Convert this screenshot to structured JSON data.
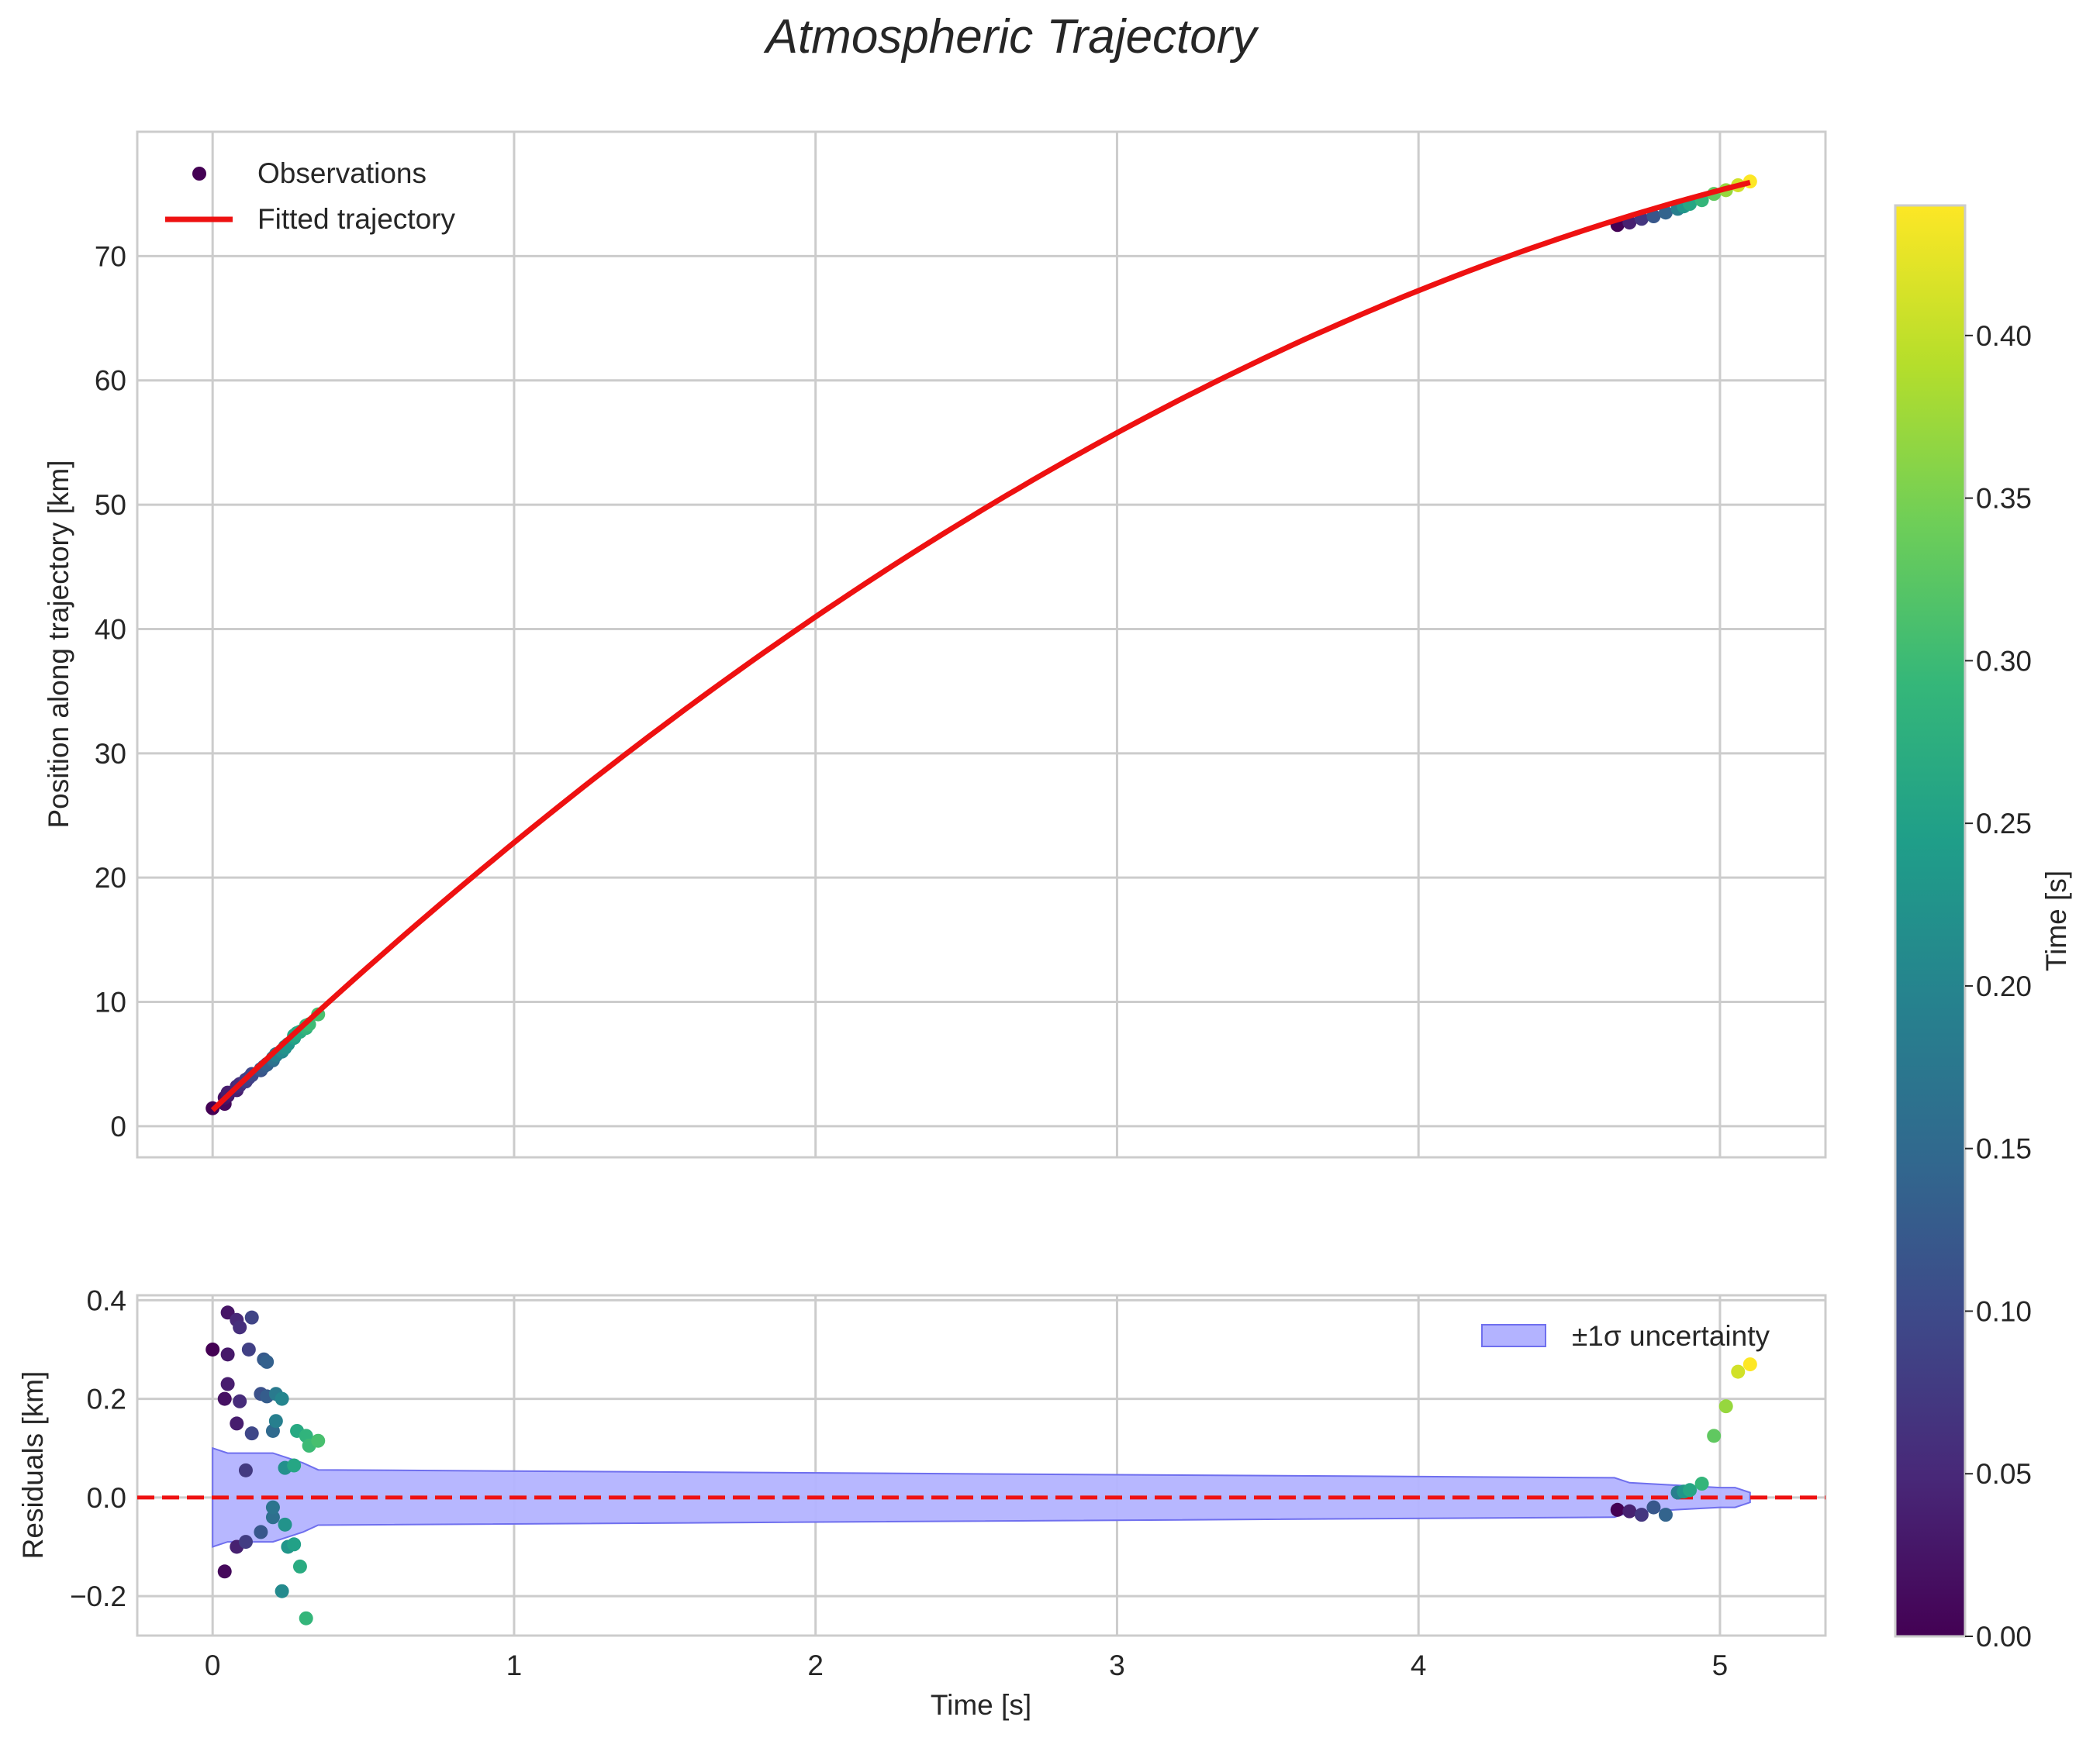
{
  "chart_data": {
    "title": "Atmospheric Trajectory",
    "colors": {
      "fit": "#ee1111",
      "band_fill": "#b3b3ff",
      "band_edge": "#6f6fee",
      "grid": "#cccccc",
      "spine": "#cccccc",
      "zero_line": "#ee1111"
    },
    "colormap": {
      "name": "viridis",
      "stops": [
        "#440154",
        "#482878",
        "#3e4989",
        "#31688e",
        "#26828e",
        "#1f9e89",
        "#35b779",
        "#6ece58",
        "#b5de2b",
        "#fde725"
      ]
    },
    "colorbar": {
      "label": "Time [s]",
      "range": [
        0,
        0.44
      ],
      "ticks": [
        "0.00",
        "0.05",
        "0.10",
        "0.15",
        "0.20",
        "0.25",
        "0.30",
        "0.35",
        "0.40"
      ]
    },
    "top": {
      "type": "scatter+line",
      "ylabel": "Position along trajectory [km]",
      "xlim": [
        -0.25,
        5.35
      ],
      "ylim": [
        -2.5,
        80
      ],
      "xticks": [
        0,
        1,
        2,
        3,
        4,
        5
      ],
      "yticks": [
        "0",
        "10",
        "20",
        "30",
        "40",
        "50",
        "60",
        "70"
      ],
      "legend": {
        "observations": "Observations",
        "fit": "Fitted trajectory",
        "position": "upper-left"
      },
      "fit_curve": {
        "a": 1.3,
        "b": 23.2,
        "c": -1.68,
        "x_start": 0,
        "x_end": 5.1
      }
    },
    "bottom": {
      "type": "scatter+band",
      "xlabel": "Time [s]",
      "ylabel": "Residuals [km]",
      "xlim": [
        -0.25,
        5.35
      ],
      "ylim": [
        -0.28,
        0.41
      ],
      "xticks": [
        "0",
        "1",
        "2",
        "3",
        "4",
        "5"
      ],
      "yticks": [
        "−0.2",
        "0.0",
        "0.2",
        "0.4"
      ],
      "legend": {
        "band": "±1σ uncertainty",
        "position": "upper-right"
      },
      "band": {
        "x": [
          0,
          0.05,
          0.2,
          0.3,
          0.35,
          4.65,
          4.7,
          5.0,
          5.05,
          5.1
        ],
        "upper": [
          0.1,
          0.09,
          0.09,
          0.07,
          0.056,
          0.04,
          0.03,
          0.02,
          0.02,
          0.01
        ],
        "lower": [
          -0.1,
          -0.09,
          -0.09,
          -0.07,
          -0.056,
          -0.04,
          -0.03,
          -0.02,
          -0.02,
          -0.01
        ]
      }
    },
    "observations": [
      {
        "t": 0.0,
        "pos": 1.45,
        "res": 0.3,
        "c": 0.0
      },
      {
        "t": 0.04,
        "pos": 1.8,
        "res": -0.15,
        "c": 0.01
      },
      {
        "t": 0.04,
        "pos": 2.3,
        "res": 0.2,
        "c": 0.02
      },
      {
        "t": 0.05,
        "pos": 2.45,
        "res": 0.375,
        "c": 0.025
      },
      {
        "t": 0.05,
        "pos": 2.6,
        "res": 0.29,
        "c": 0.03
      },
      {
        "t": 0.05,
        "pos": 2.7,
        "res": 0.23,
        "c": 0.035
      },
      {
        "t": 0.08,
        "pos": 2.9,
        "res": 0.15,
        "c": 0.035
      },
      {
        "t": 0.08,
        "pos": 3.0,
        "res": -0.1,
        "c": 0.04
      },
      {
        "t": 0.08,
        "pos": 3.2,
        "res": 0.36,
        "c": 0.05
      },
      {
        "t": 0.09,
        "pos": 3.3,
        "res": 0.195,
        "c": 0.055
      },
      {
        "t": 0.09,
        "pos": 3.4,
        "res": 0.345,
        "c": 0.06
      },
      {
        "t": 0.11,
        "pos": 3.6,
        "res": 0.055,
        "c": 0.075
      },
      {
        "t": 0.11,
        "pos": 3.75,
        "res": -0.09,
        "c": 0.08
      },
      {
        "t": 0.12,
        "pos": 3.9,
        "res": 0.3,
        "c": 0.085
      },
      {
        "t": 0.13,
        "pos": 4.1,
        "res": 0.365,
        "c": 0.09
      },
      {
        "t": 0.13,
        "pos": 4.2,
        "res": 0.13,
        "c": 0.095
      },
      {
        "t": 0.16,
        "pos": 4.5,
        "res": 0.21,
        "c": 0.11
      },
      {
        "t": 0.16,
        "pos": 4.6,
        "res": -0.07,
        "c": 0.12
      },
      {
        "t": 0.17,
        "pos": 4.8,
        "res": 0.28,
        "c": 0.125
      },
      {
        "t": 0.18,
        "pos": 4.95,
        "res": 0.205,
        "c": 0.13
      },
      {
        "t": 0.18,
        "pos": 5.0,
        "res": 0.275,
        "c": 0.135
      },
      {
        "t": 0.2,
        "pos": 5.3,
        "res": 0.135,
        "c": 0.15
      },
      {
        "t": 0.2,
        "pos": 5.4,
        "res": -0.04,
        "c": 0.16
      },
      {
        "t": 0.2,
        "pos": 5.5,
        "res": -0.02,
        "c": 0.17
      },
      {
        "t": 0.21,
        "pos": 5.7,
        "res": 0.21,
        "c": 0.18
      },
      {
        "t": 0.21,
        "pos": 5.8,
        "res": 0.155,
        "c": 0.19
      },
      {
        "t": 0.23,
        "pos": 6.0,
        "res": 0.2,
        "c": 0.2
      },
      {
        "t": 0.23,
        "pos": 6.1,
        "res": -0.19,
        "c": 0.21
      },
      {
        "t": 0.24,
        "pos": 6.3,
        "res": 0.06,
        "c": 0.22
      },
      {
        "t": 0.24,
        "pos": 6.4,
        "res": -0.055,
        "c": 0.225
      },
      {
        "t": 0.25,
        "pos": 6.6,
        "res": -0.1,
        "c": 0.23
      },
      {
        "t": 0.27,
        "pos": 7.1,
        "res": -0.095,
        "c": 0.25
      },
      {
        "t": 0.27,
        "pos": 7.3,
        "res": 0.065,
        "c": 0.26
      },
      {
        "t": 0.28,
        "pos": 7.5,
        "res": 0.135,
        "c": 0.265
      },
      {
        "t": 0.29,
        "pos": 7.6,
        "res": -0.14,
        "c": 0.27
      },
      {
        "t": 0.31,
        "pos": 7.9,
        "res": 0.125,
        "c": 0.285
      },
      {
        "t": 0.31,
        "pos": 8.1,
        "res": -0.245,
        "c": 0.29
      },
      {
        "t": 0.32,
        "pos": 8.2,
        "res": 0.105,
        "c": 0.3
      },
      {
        "t": 0.35,
        "pos": 9.0,
        "res": 0.115,
        "c": 0.31
      },
      {
        "t": 4.66,
        "pos": 72.5,
        "res": -0.025,
        "c": 0.0
      },
      {
        "t": 4.7,
        "pos": 72.7,
        "res": -0.028,
        "c": 0.04
      },
      {
        "t": 4.74,
        "pos": 73.0,
        "res": -0.035,
        "c": 0.07
      },
      {
        "t": 4.78,
        "pos": 73.2,
        "res": -0.02,
        "c": 0.12
      },
      {
        "t": 4.82,
        "pos": 73.5,
        "res": -0.035,
        "c": 0.14
      },
      {
        "t": 4.86,
        "pos": 73.8,
        "res": 0.01,
        "c": 0.19
      },
      {
        "t": 4.88,
        "pos": 74.0,
        "res": 0.012,
        "c": 0.23
      },
      {
        "t": 4.9,
        "pos": 74.2,
        "res": 0.015,
        "c": 0.26
      },
      {
        "t": 4.94,
        "pos": 74.5,
        "res": 0.028,
        "c": 0.29
      },
      {
        "t": 4.98,
        "pos": 75.0,
        "res": 0.125,
        "c": 0.33
      },
      {
        "t": 5.02,
        "pos": 75.3,
        "res": 0.185,
        "c": 0.37
      },
      {
        "t": 5.06,
        "pos": 75.7,
        "res": 0.255,
        "c": 0.41
      },
      {
        "t": 5.1,
        "pos": 76.0,
        "res": 0.27,
        "c": 0.44
      }
    ]
  }
}
